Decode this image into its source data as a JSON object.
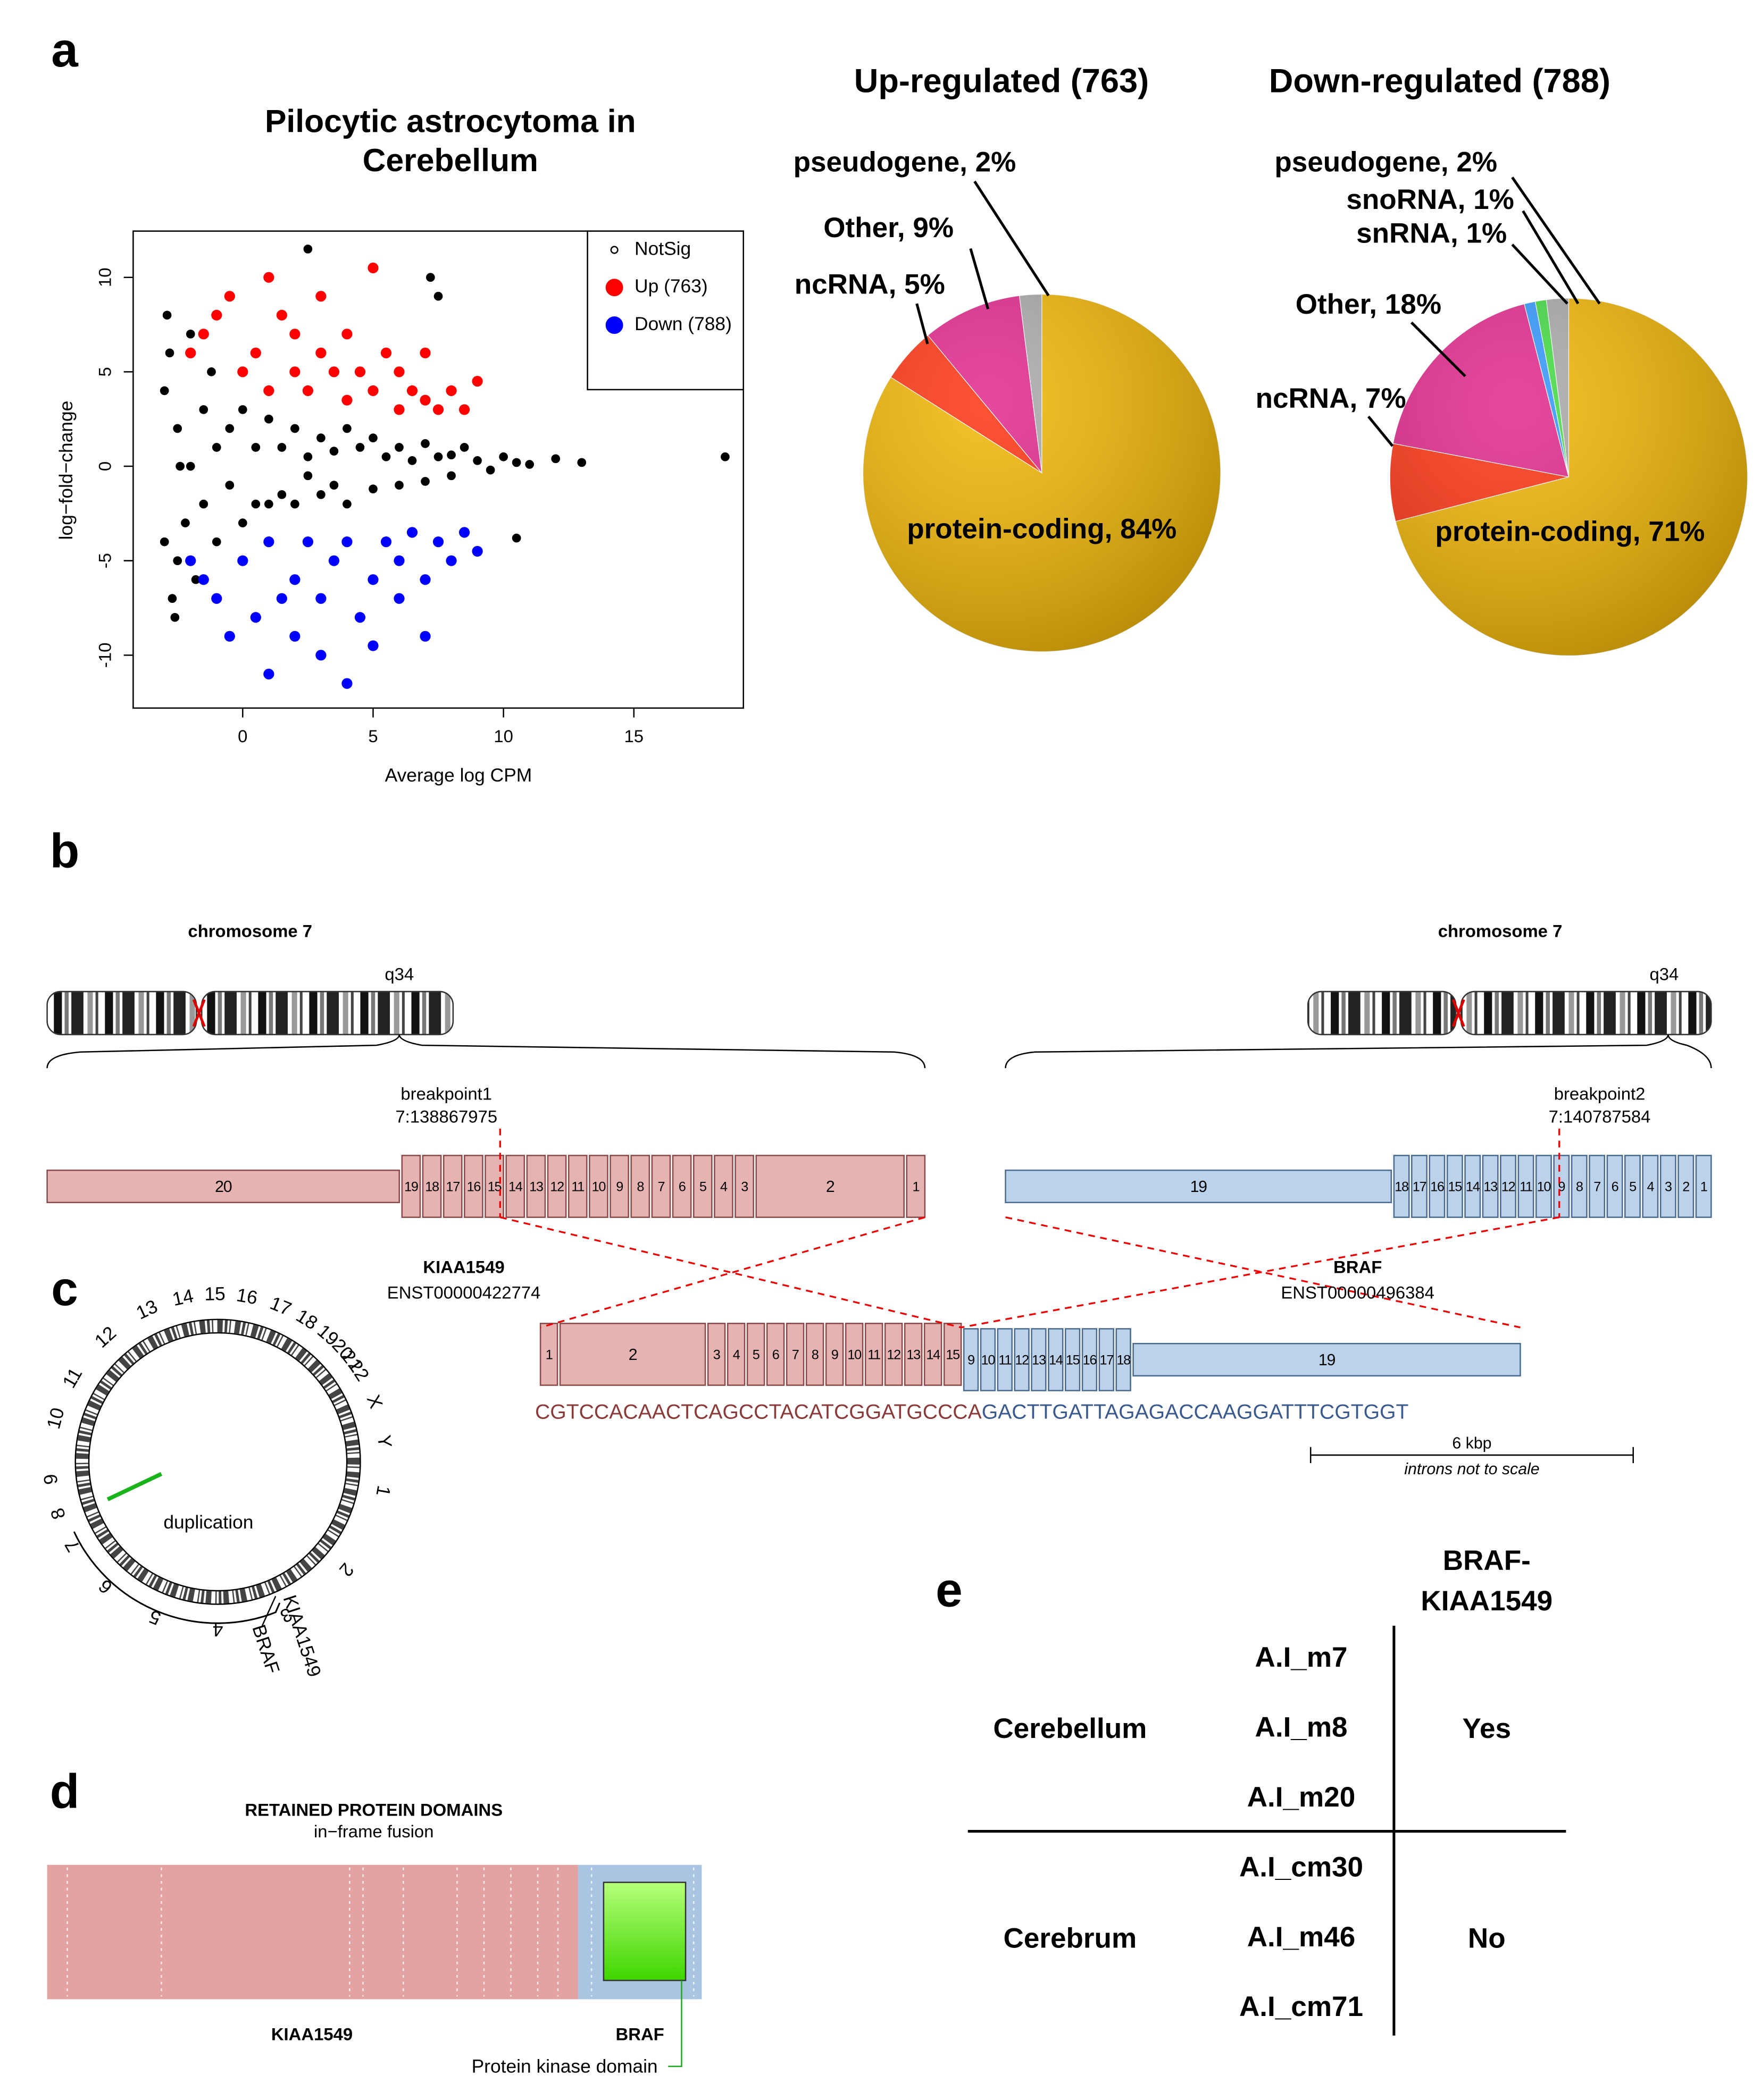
{
  "panels": {
    "a": "a",
    "b": "b",
    "c": "c",
    "d": "d",
    "e": "e"
  },
  "chart_data": [
    {
      "type": "scatter",
      "title": [
        "Pilocytic astrocytoma in",
        "Cerebellum"
      ],
      "xlabel": "Average log CPM",
      "ylabel": "log−fold−change",
      "xlim": [
        -4.2,
        19.2
      ],
      "ylim": [
        -12.8,
        12.45
      ],
      "xticks": [
        0,
        5,
        10,
        15
      ],
      "yticks": [
        -10,
        -5,
        0,
        5,
        10
      ],
      "legend": "upper right",
      "series": [
        {
          "name": "NotSig",
          "color": "#000000",
          "x": [
            -3,
            -3,
            -2.8,
            -2.5,
            -2.5,
            -2.2,
            -2,
            -2,
            -1.8,
            -1.5,
            -1.5,
            -1.2,
            -1,
            -1,
            -0.5,
            -0.5,
            0,
            0,
            0.5,
            0.5,
            1,
            1,
            1.5,
            1.5,
            2,
            2,
            2.5,
            2.5,
            3,
            3,
            3.5,
            3.5,
            4,
            4,
            4.5,
            5,
            5,
            5.5,
            6,
            6,
            6.5,
            7,
            7,
            7.5,
            8,
            8,
            8.5,
            9,
            9.5,
            10,
            10.5,
            11,
            12,
            13,
            18.5,
            2.5,
            7.2,
            7.5,
            10.5,
            -2.7,
            -2.9,
            -2.6,
            -2.4
          ],
          "values": [
            4,
            -4,
            6,
            -5,
            2,
            -3,
            0,
            7,
            -6,
            3,
            -2,
            5,
            -4,
            1,
            2,
            -1,
            3,
            -3,
            1,
            -2,
            2.5,
            -2,
            1,
            -1.5,
            2,
            -2,
            0.5,
            -0.5,
            1.5,
            -1.5,
            0.8,
            -1,
            2,
            -2,
            1,
            1.5,
            -1.2,
            0.5,
            1,
            -1,
            0.3,
            1.2,
            -0.8,
            0.5,
            0.6,
            -0.5,
            1,
            0.3,
            -0.2,
            0.5,
            0.2,
            0.1,
            0.4,
            0.2,
            0.5,
            11.5,
            10,
            9,
            -3.8,
            -7,
            8,
            -8,
            0
          ]
        },
        {
          "name": "Up (763)",
          "color": "#ff0000",
          "x": [
            -2,
            -1.5,
            -1,
            -0.5,
            0,
            0.5,
            1,
            1,
            1.5,
            2,
            2,
            2.5,
            3,
            3,
            3.5,
            4,
            4,
            4.5,
            5,
            5,
            5.5,
            6,
            6,
            6.5,
            7,
            7,
            7.5,
            8,
            8.5,
            9
          ],
          "values": [
            6,
            7,
            8,
            9,
            5,
            6,
            10,
            4,
            8,
            5,
            7,
            4,
            6,
            9,
            5,
            3.5,
            7,
            5,
            10.5,
            4,
            6,
            3,
            5,
            4,
            3.5,
            6,
            3,
            4,
            3,
            4.5
          ]
        },
        {
          "name": "Down (788)",
          "color": "#0000ff",
          "x": [
            -2,
            -1.5,
            -1,
            -0.5,
            0,
            0.5,
            1,
            1,
            1.5,
            2,
            2,
            2.5,
            3,
            3,
            3.5,
            4,
            4,
            4.5,
            5,
            5,
            5.5,
            6,
            6,
            6.5,
            7,
            7,
            7.5,
            8,
            8.5,
            9
          ],
          "values": [
            -5,
            -6,
            -7,
            -9,
            -5,
            -8,
            -11,
            -4,
            -7,
            -6,
            -9,
            -4,
            -10,
            -7,
            -5,
            -11.5,
            -4,
            -8,
            -6,
            -9.5,
            -4,
            -7,
            -5,
            -3.5,
            -6,
            -9,
            -4,
            -5,
            -3.5,
            -4.5
          ]
        }
      ]
    },
    {
      "type": "pie",
      "title": "Up-regulated (763)",
      "values": [
        84,
        5,
        9,
        2
      ],
      "value_labels": [
        "protein-coding, 84%",
        "ncRNA, 5%",
        "Other, 9%",
        "pseudogene, 2%"
      ],
      "colors": [
        "#f2b705",
        "#ff3412",
        "#e2288c",
        "#aaaaaa"
      ]
    },
    {
      "type": "pie",
      "title": "Down-regulated (788)",
      "values": [
        71,
        7,
        18,
        1,
        1,
        2
      ],
      "value_labels": [
        "protein-coding, 71%",
        "ncRNA, 7%",
        "Other, 18%",
        "snRNA, 1%",
        "snoRNA, 1%",
        "pseudogene, 2%"
      ],
      "colors": [
        "#f2b705",
        "#ff3412",
        "#e2288c",
        "#3399ff",
        "#44dd44",
        "#aaaaaa"
      ]
    }
  ],
  "fusion_diagram": {
    "chromosome_left": {
      "name": "chromosome 7",
      "band": "q34"
    },
    "chromosome_right": {
      "name": "chromosome 7",
      "band": "q34"
    },
    "breakpoint1": {
      "label": "breakpoint1",
      "position": "7:138867975"
    },
    "breakpoint2": {
      "label": "breakpoint2",
      "position": "7:140787584"
    },
    "kiaa1549": {
      "name": "KIAA1549",
      "transcript": "ENST00000422774",
      "exons": [
        20,
        19,
        18,
        17,
        16,
        15,
        14,
        13,
        12,
        11,
        10,
        9,
        8,
        7,
        6,
        5,
        4,
        3,
        2,
        1
      ]
    },
    "braf": {
      "name": "BRAF",
      "transcript": "ENST00000496384",
      "exons": [
        19,
        18,
        17,
        16,
        15,
        14,
        13,
        12,
        11,
        10,
        9,
        8,
        7,
        6,
        5,
        4,
        3,
        2,
        1
      ]
    },
    "fusion": {
      "kiaa1549_exons": [
        1,
        2,
        3,
        4,
        5,
        6,
        7,
        8,
        9,
        10,
        11,
        12,
        13,
        14,
        15
      ],
      "braf_exons": [
        9,
        10,
        11,
        12,
        13,
        14,
        15,
        16,
        17,
        18,
        19
      ],
      "sequence_kiaa1549": "CGTCCACAACTCAGCCTACATCGGATGCCCA",
      "sequence_braf": "GACTTGATTAGAGACCAAGGATTTCGTGGT"
    },
    "scale_bar": "6 kbp",
    "scale_note": "introns not to scale"
  },
  "circos": {
    "chromosomes": [
      1,
      2,
      3,
      4,
      5,
      6,
      7,
      8,
      9,
      10,
      11,
      12,
      13,
      14,
      15,
      16,
      17,
      18,
      19,
      20,
      21,
      22,
      "X",
      "Y"
    ],
    "event": "duplication",
    "gene1": "KIAA1549",
    "gene2": "BRAF"
  },
  "domains": {
    "title": "RETAINED PROTEIN DOMAINS",
    "subtitle": "in−frame fusion",
    "gene1": "KIAA1549",
    "gene2": "BRAF",
    "domain": "Protein kinase domain"
  },
  "table": {
    "header": [
      "BRAF-",
      "KIAA1549"
    ],
    "groups": [
      {
        "tissue": "Cerebellum",
        "samples": [
          "A.I_m7",
          "A.I_m8",
          "A.I_m20"
        ],
        "fusion": "Yes"
      },
      {
        "tissue": "Cerebrum",
        "samples": [
          "A.I_cm30",
          "A.I_m46",
          "A.I_cm71"
        ],
        "fusion": "No"
      }
    ]
  }
}
